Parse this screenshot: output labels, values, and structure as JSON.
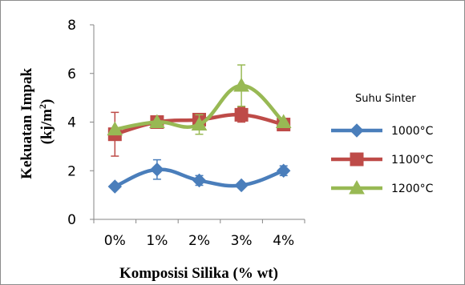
{
  "chart_data": {
    "type": "line",
    "title": "",
    "xlabel": "Komposisi Silika (% wt)",
    "ylabel_main": "Kekuatan Impak",
    "ylabel_unit_prefix": "(kj/m",
    "ylabel_unit_sup": "2",
    "ylabel_unit_suffix": ")",
    "categories": [
      "0%",
      "1%",
      "2%",
      "3%",
      "4%"
    ],
    "ylim": [
      0,
      8
    ],
    "yticks": [
      "0",
      "2",
      "4",
      "6",
      "8"
    ],
    "grid": false,
    "legend_title": "Suhu Sinter",
    "legend_position": "right",
    "series": [
      {
        "name": "1000°C",
        "color": "#4a7ebb",
        "marker": "diamond",
        "values": [
          1.35,
          2.05,
          1.6,
          1.4,
          2.0
        ],
        "errors": [
          0.0,
          0.4,
          0.2,
          0.0,
          0.2
        ]
      },
      {
        "name": "1100°C",
        "color": "#be4b48",
        "marker": "square",
        "values": [
          3.5,
          4.0,
          4.1,
          4.3,
          3.9
        ],
        "errors": [
          0.9,
          0.0,
          0.0,
          0.3,
          0.0
        ]
      },
      {
        "name": "1200°C",
        "color": "#98b954",
        "marker": "triangle",
        "values": [
          3.7,
          4.0,
          3.9,
          5.5,
          4.0
        ],
        "errors": [
          0.0,
          0.0,
          0.4,
          0.85,
          0.0
        ]
      }
    ]
  }
}
